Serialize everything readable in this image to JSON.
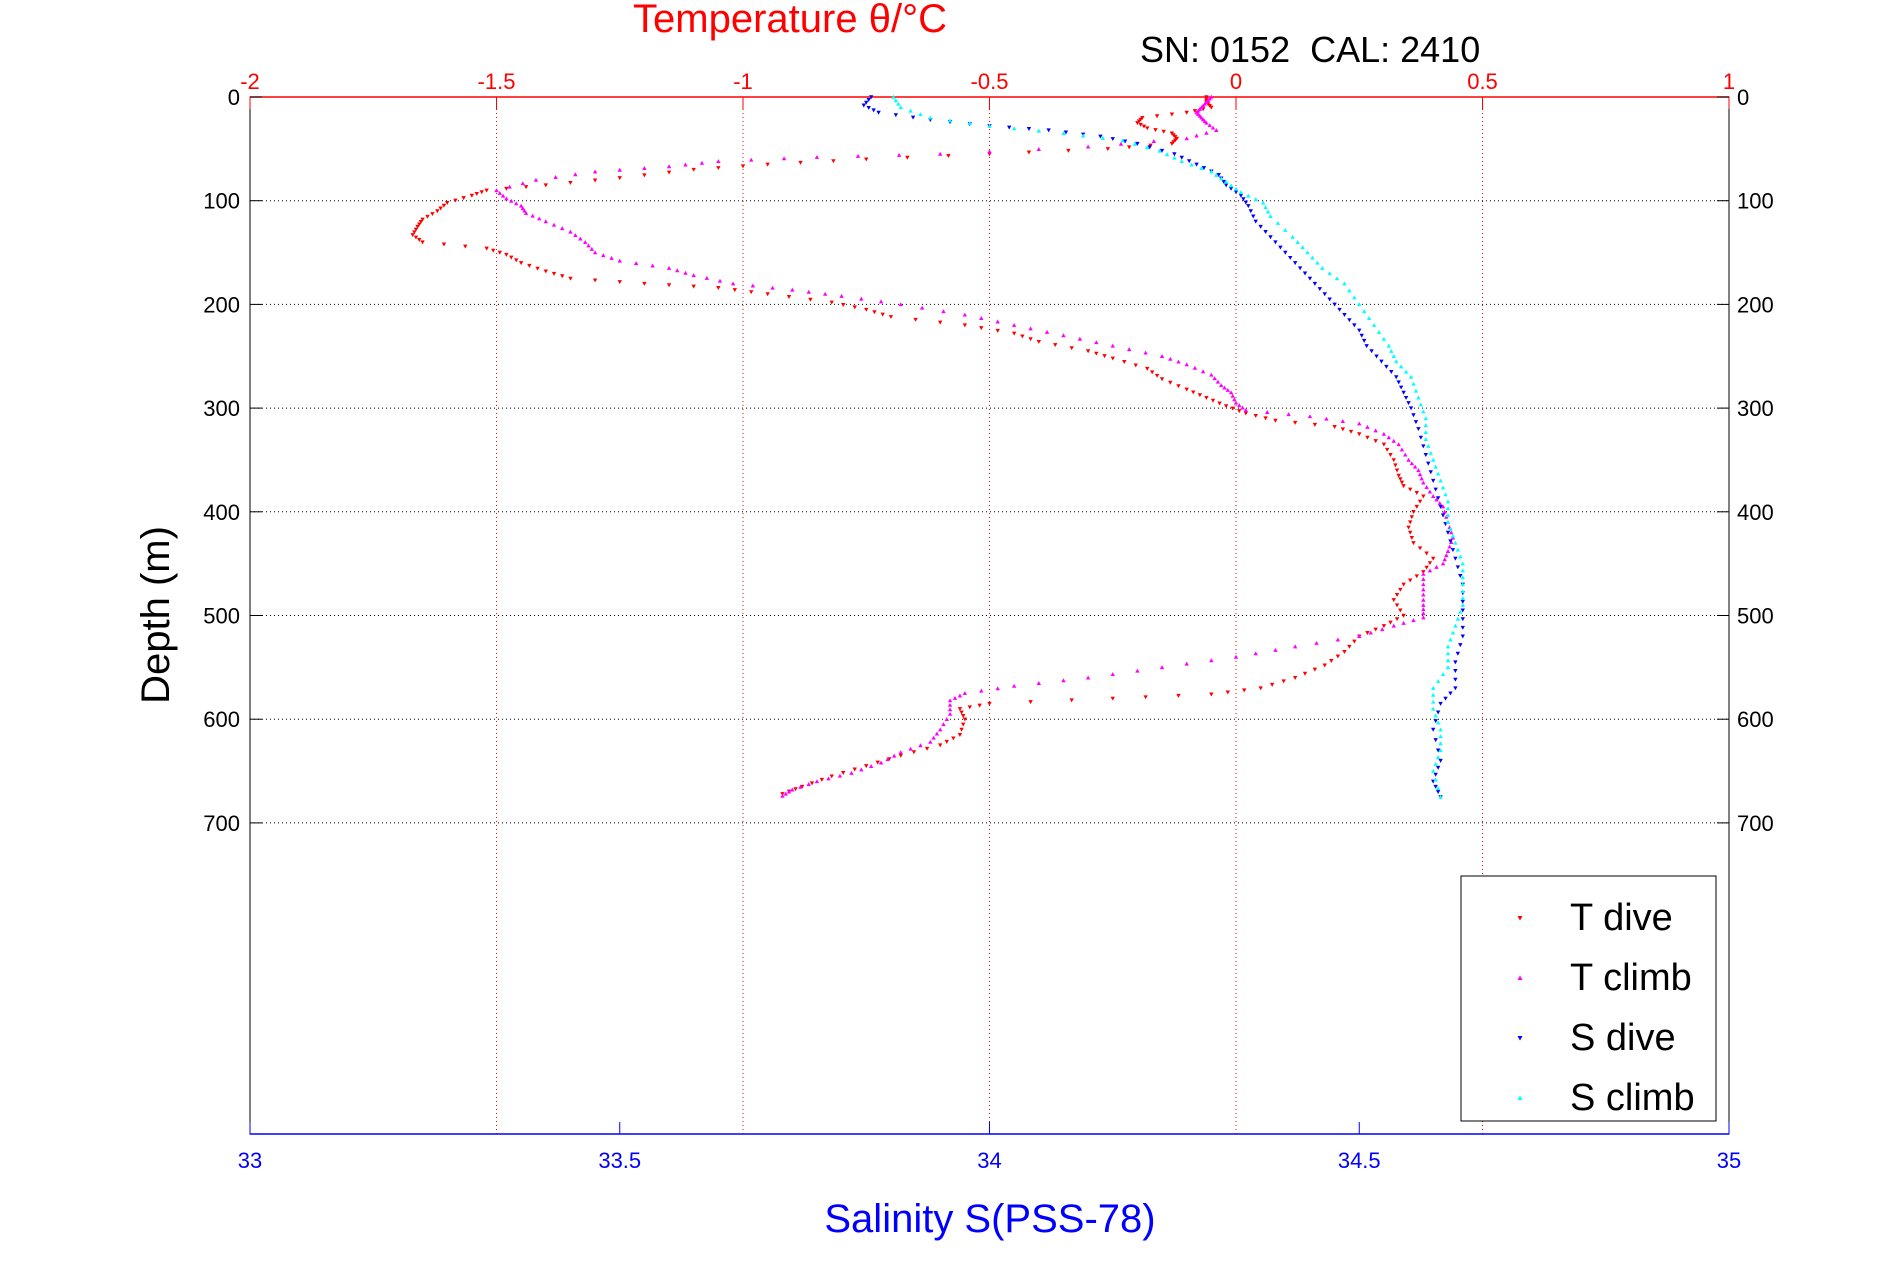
{
  "chart_data": {
    "type": "scatter",
    "title": "Temperature θ/°C",
    "subtitle": "SN: 0152  CAL: 2410",
    "xlabel": "Salinity S(PSS-78)",
    "ylabel": "Depth (m)",
    "top_axis": {
      "label": "Temperature θ/°C",
      "lim": [
        -2,
        1
      ],
      "ticks": [
        "-2",
        "-1.5",
        "-1",
        "-0.5",
        "0",
        "0.5",
        "1"
      ],
      "color": "#ff0000"
    },
    "bottom_axis": {
      "label": "Salinity S(PSS-78)",
      "lim": [
        33,
        35
      ],
      "ticks": [
        "33",
        "33.5",
        "34",
        "34.5",
        "35"
      ],
      "color": "#0000ff"
    },
    "y_axis": {
      "lim": [
        0,
        1000
      ],
      "reversed": true,
      "ticks": [
        "0",
        "100",
        "200",
        "300",
        "400",
        "500",
        "600",
        "700"
      ]
    },
    "grid": true,
    "legend_position": "bottom-right",
    "series": [
      {
        "name": "T dive",
        "axis": "temperature",
        "color": "#ff0000",
        "marker": "down-triangle",
        "points": [
          [
            -0.06,
            0
          ],
          [
            -0.06,
            5
          ],
          [
            -0.05,
            10
          ],
          [
            -0.1,
            15
          ],
          [
            -0.19,
            20
          ],
          [
            -0.2,
            25
          ],
          [
            -0.18,
            30
          ],
          [
            -0.13,
            35
          ],
          [
            -0.12,
            40
          ],
          [
            -0.13,
            45
          ],
          [
            -0.26,
            50
          ],
          [
            -0.5,
            55
          ],
          [
            -0.75,
            60
          ],
          [
            -0.95,
            65
          ],
          [
            -1.1,
            70
          ],
          [
            -1.25,
            78
          ],
          [
            -1.4,
            85
          ],
          [
            -1.52,
            90
          ],
          [
            -1.55,
            95
          ],
          [
            -1.6,
            102
          ],
          [
            -1.62,
            110
          ],
          [
            -1.65,
            118
          ],
          [
            -1.66,
            125
          ],
          [
            -1.67,
            133
          ],
          [
            -1.65,
            140
          ],
          [
            -1.52,
            146
          ],
          [
            -1.48,
            152
          ],
          [
            -1.45,
            160
          ],
          [
            -1.4,
            168
          ],
          [
            -1.35,
            175
          ],
          [
            -1.2,
            180
          ],
          [
            -1.05,
            184
          ],
          [
            -0.95,
            190
          ],
          [
            -0.82,
            198
          ],
          [
            -0.75,
            205
          ],
          [
            -0.7,
            212
          ],
          [
            -0.55,
            220
          ],
          [
            -0.45,
            228
          ],
          [
            -0.4,
            236
          ],
          [
            -0.3,
            245
          ],
          [
            -0.25,
            252
          ],
          [
            -0.18,
            262
          ],
          [
            -0.15,
            272
          ],
          [
            -0.1,
            282
          ],
          [
            -0.06,
            290
          ],
          [
            -0.02,
            298
          ],
          [
            0.02,
            305
          ],
          [
            0.08,
            312
          ],
          [
            0.2,
            318
          ],
          [
            0.25,
            325
          ],
          [
            0.3,
            335
          ],
          [
            0.32,
            350
          ],
          [
            0.33,
            365
          ],
          [
            0.34,
            375
          ],
          [
            0.38,
            385
          ],
          [
            0.36,
            400
          ],
          [
            0.35,
            415
          ],
          [
            0.36,
            430
          ],
          [
            0.4,
            445
          ],
          [
            0.38,
            458
          ],
          [
            0.34,
            470
          ],
          [
            0.32,
            485
          ],
          [
            0.34,
            500
          ],
          [
            0.3,
            510
          ],
          [
            0.25,
            520
          ],
          [
            0.22,
            535
          ],
          [
            0.18,
            548
          ],
          [
            0.12,
            560
          ],
          [
            0.05,
            570
          ],
          [
            -0.05,
            576
          ],
          [
            -0.25,
            580
          ],
          [
            -0.5,
            585
          ],
          [
            -0.56,
            590
          ],
          [
            -0.55,
            600
          ],
          [
            -0.56,
            615
          ],
          [
            -0.6,
            625
          ],
          [
            -0.68,
            635
          ],
          [
            -0.75,
            645
          ],
          [
            -0.82,
            655
          ],
          [
            -0.88,
            665
          ],
          [
            -0.92,
            672
          ]
        ]
      },
      {
        "name": "T climb",
        "axis": "temperature",
        "color": "#ff00ff",
        "marker": "up-triangle",
        "points": [
          [
            -0.05,
            0
          ],
          [
            -0.06,
            5
          ],
          [
            -0.07,
            10
          ],
          [
            -0.08,
            15
          ],
          [
            -0.07,
            20
          ],
          [
            -0.06,
            25
          ],
          [
            -0.04,
            32
          ],
          [
            -0.1,
            40
          ],
          [
            -0.3,
            48
          ],
          [
            -0.6,
            55
          ],
          [
            -0.85,
            58
          ],
          [
            -1.05,
            62
          ],
          [
            -1.15,
            67
          ],
          [
            -1.3,
            72
          ],
          [
            -1.42,
            80
          ],
          [
            -1.5,
            90
          ],
          [
            -1.48,
            98
          ],
          [
            -1.45,
            105
          ],
          [
            -1.44,
            112
          ],
          [
            -1.4,
            120
          ],
          [
            -1.35,
            130
          ],
          [
            -1.32,
            140
          ],
          [
            -1.3,
            150
          ],
          [
            -1.25,
            158
          ],
          [
            -1.15,
            165
          ],
          [
            -1.1,
            172
          ],
          [
            -1.02,
            180
          ],
          [
            -0.9,
            186
          ],
          [
            -0.8,
            192
          ],
          [
            -0.68,
            200
          ],
          [
            -0.55,
            210
          ],
          [
            -0.45,
            220
          ],
          [
            -0.35,
            230
          ],
          [
            -0.25,
            240
          ],
          [
            -0.15,
            250
          ],
          [
            -0.1,
            258
          ],
          [
            -0.05,
            268
          ],
          [
            -0.03,
            278
          ],
          [
            -0.01,
            285
          ],
          [
            0.0,
            295
          ],
          [
            0.02,
            302
          ],
          [
            0.15,
            308
          ],
          [
            0.25,
            315
          ],
          [
            0.3,
            325
          ],
          [
            0.33,
            335
          ],
          [
            0.35,
            350
          ],
          [
            0.37,
            360
          ],
          [
            0.38,
            372
          ],
          [
            0.4,
            385
          ],
          [
            0.42,
            395
          ],
          [
            0.43,
            410
          ],
          [
            0.44,
            425
          ],
          [
            0.43,
            438
          ],
          [
            0.42,
            450
          ],
          [
            0.38,
            460
          ],
          [
            0.38,
            475
          ],
          [
            0.38,
            490
          ],
          [
            0.38,
            502
          ],
          [
            0.32,
            510
          ],
          [
            0.25,
            520
          ],
          [
            0.12,
            530
          ],
          [
            0.0,
            540
          ],
          [
            -0.15,
            550
          ],
          [
            -0.3,
            560
          ],
          [
            -0.45,
            568
          ],
          [
            -0.55,
            575
          ],
          [
            -0.58,
            582
          ],
          [
            -0.58,
            595
          ],
          [
            -0.6,
            610
          ],
          [
            -0.62,
            622
          ],
          [
            -0.68,
            632
          ],
          [
            -0.72,
            642
          ],
          [
            -0.78,
            652
          ],
          [
            -0.85,
            660
          ],
          [
            -0.9,
            668
          ],
          [
            -0.92,
            674
          ]
        ]
      },
      {
        "name": "S dive",
        "axis": "salinity",
        "color": "#0000ff",
        "marker": "down-triangle",
        "points": [
          [
            33.84,
            0
          ],
          [
            33.83,
            8
          ],
          [
            33.85,
            15
          ],
          [
            33.92,
            22
          ],
          [
            34.0,
            28
          ],
          [
            34.08,
            32
          ],
          [
            34.15,
            38
          ],
          [
            34.2,
            45
          ],
          [
            34.25,
            55
          ],
          [
            34.28,
            65
          ],
          [
            34.31,
            75
          ],
          [
            34.32,
            85
          ],
          [
            34.34,
            95
          ],
          [
            34.35,
            105
          ],
          [
            34.36,
            120
          ],
          [
            34.38,
            135
          ],
          [
            34.4,
            150
          ],
          [
            34.42,
            165
          ],
          [
            34.44,
            180
          ],
          [
            34.46,
            195
          ],
          [
            34.48,
            210
          ],
          [
            34.5,
            225
          ],
          [
            34.51,
            240
          ],
          [
            34.53,
            255
          ],
          [
            34.55,
            270
          ],
          [
            34.56,
            285
          ],
          [
            34.57,
            300
          ],
          [
            34.58,
            320
          ],
          [
            34.59,
            345
          ],
          [
            34.6,
            370
          ],
          [
            34.61,
            395
          ],
          [
            34.62,
            420
          ],
          [
            34.63,
            445
          ],
          [
            34.64,
            470
          ],
          [
            34.64,
            495
          ],
          [
            34.64,
            520
          ],
          [
            34.63,
            545
          ],
          [
            34.63,
            570
          ],
          [
            34.61,
            585
          ],
          [
            34.6,
            610
          ],
          [
            34.61,
            640
          ],
          [
            34.6,
            660
          ],
          [
            34.61,
            675
          ]
        ]
      },
      {
        "name": "S climb",
        "axis": "salinity",
        "color": "#00ffff",
        "marker": "up-triangle",
        "points": [
          [
            33.87,
            0
          ],
          [
            33.88,
            10
          ],
          [
            33.92,
            20
          ],
          [
            34.0,
            28
          ],
          [
            34.1,
            35
          ],
          [
            34.18,
            42
          ],
          [
            34.23,
            52
          ],
          [
            34.26,
            62
          ],
          [
            34.3,
            72
          ],
          [
            34.32,
            82
          ],
          [
            34.34,
            92
          ],
          [
            34.37,
            102
          ],
          [
            34.38,
            115
          ],
          [
            34.41,
            135
          ],
          [
            34.43,
            150
          ],
          [
            34.45,
            165
          ],
          [
            34.48,
            180
          ],
          [
            34.5,
            200
          ],
          [
            34.52,
            220
          ],
          [
            34.54,
            240
          ],
          [
            34.55,
            255
          ],
          [
            34.57,
            270
          ],
          [
            34.58,
            290
          ],
          [
            34.59,
            310
          ],
          [
            34.59,
            330
          ],
          [
            34.6,
            350
          ],
          [
            34.61,
            370
          ],
          [
            34.62,
            390
          ],
          [
            34.62,
            410
          ],
          [
            34.63,
            430
          ],
          [
            34.64,
            450
          ],
          [
            34.64,
            470
          ],
          [
            34.64,
            490
          ],
          [
            34.63,
            510
          ],
          [
            34.62,
            530
          ],
          [
            34.62,
            550
          ],
          [
            34.6,
            570
          ],
          [
            34.6,
            590
          ],
          [
            34.61,
            610
          ],
          [
            34.61,
            630
          ],
          [
            34.6,
            650
          ],
          [
            34.61,
            675
          ]
        ]
      }
    ]
  }
}
